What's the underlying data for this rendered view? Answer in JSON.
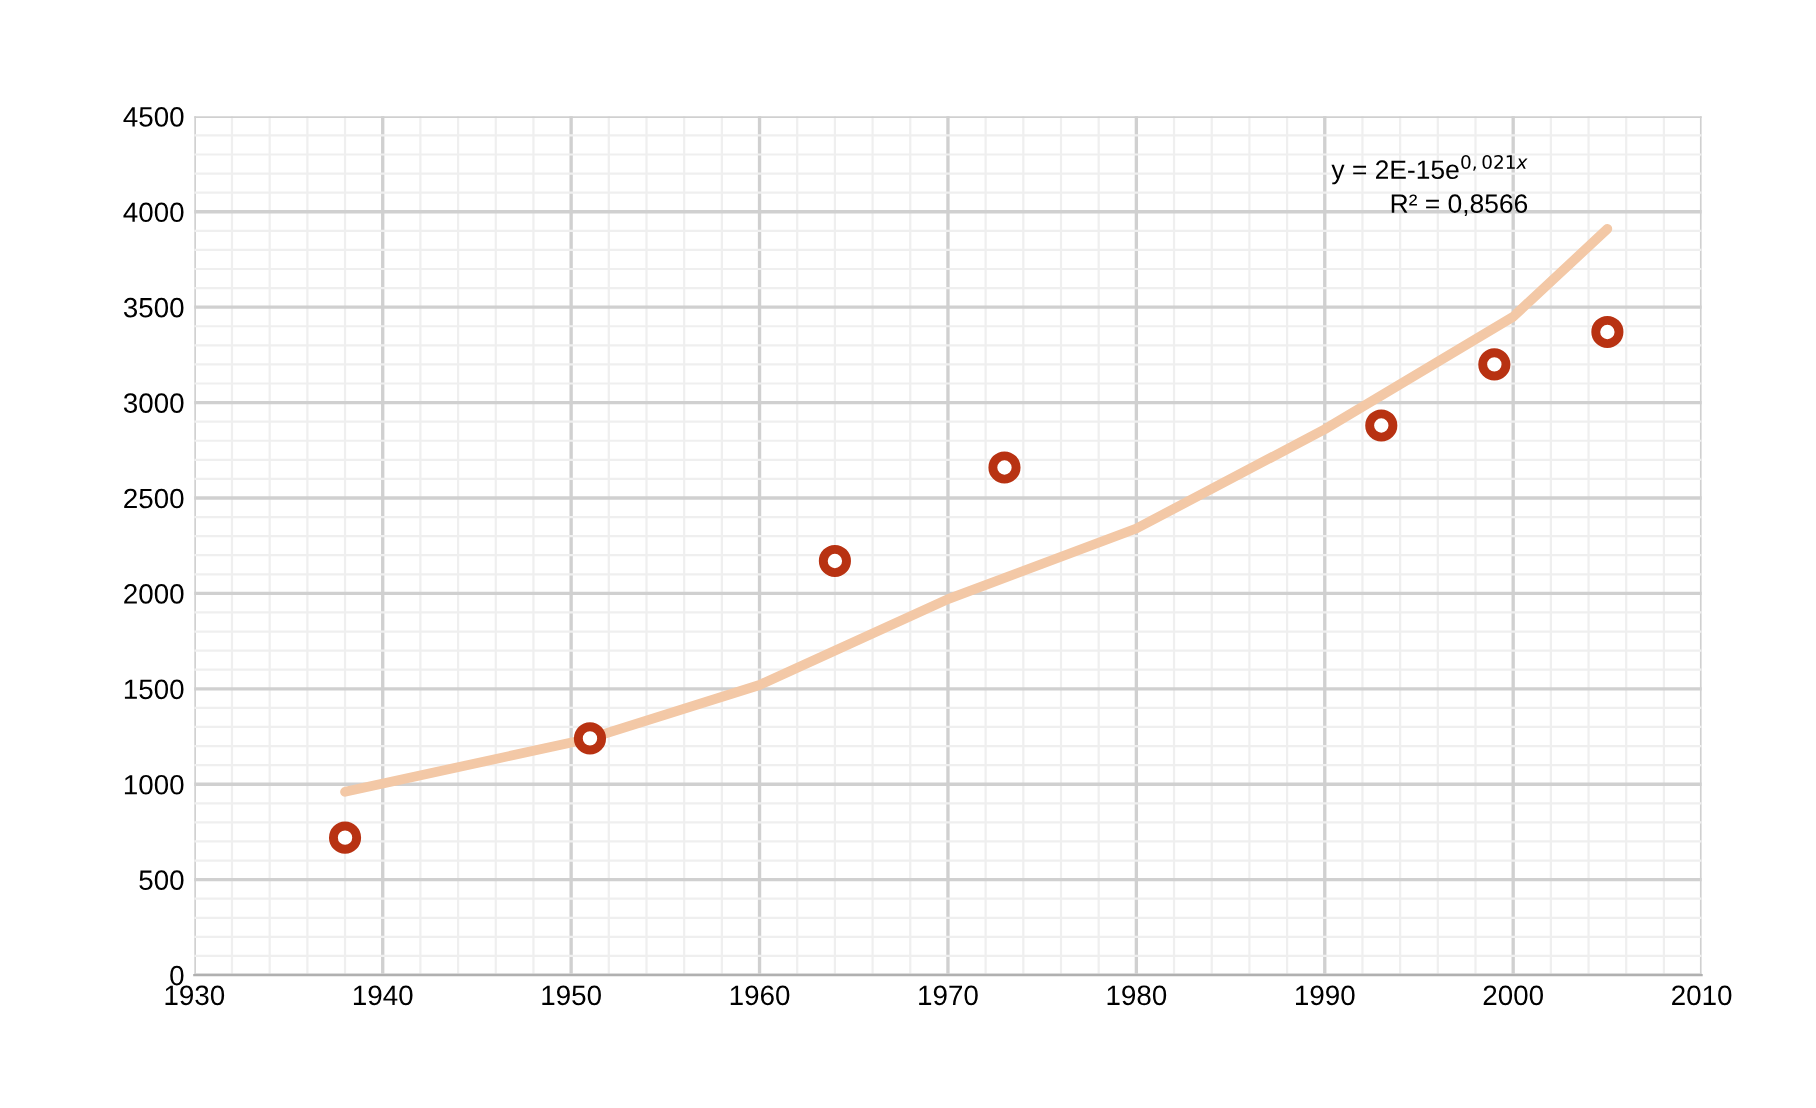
{
  "chart_data": {
    "type": "scatter",
    "series": [
      {
        "color": "#b83212",
        "marker": "circle",
        "x": [
          1938,
          1951,
          1964,
          1973,
          1993,
          1999,
          2005
        ],
        "values": [
          720,
          1240,
          2170,
          2660,
          2880,
          3200,
          3370
        ]
      },
      {
        "type": "line",
        "color": "#f3c8a6",
        "marker": "none",
        "line_style": "solid",
        "x": [
          1938,
          1951,
          1960,
          1970,
          1980,
          1990,
          2000,
          2005
        ],
        "values": [
          960,
          1240,
          1520,
          1970,
          2340,
          2860,
          3450,
          3910
        ]
      }
    ],
    "annotations": [
      "y = 2E-15e$^{0,021x}$",
      "R² = 0,8566"
    ],
    "xlim": [
      1930,
      2010
    ],
    "xticks": [
      1930,
      1940,
      1950,
      1960,
      1970,
      1980,
      1990,
      2000,
      2010
    ],
    "ylim": [
      0,
      4500
    ],
    "yticks": [
      0,
      500,
      1000,
      1500,
      2000,
      2500,
      3000,
      3500,
      4000,
      4500
    ],
    "grid": true,
    "legend": false
  }
}
